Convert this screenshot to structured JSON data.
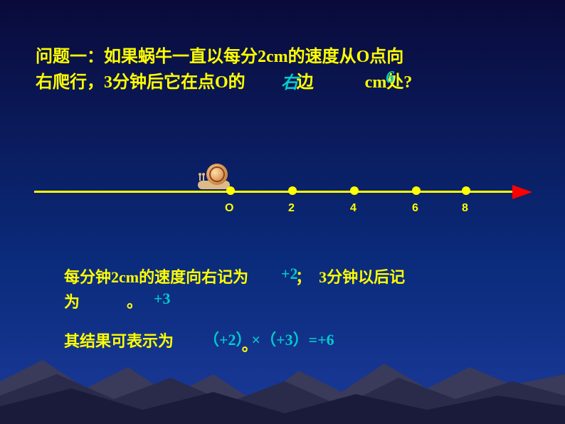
{
  "question": {
    "line1": "问题一：如果蜗牛一直以每分2cm的速度从O点向",
    "line2": "右爬行，3分钟后它在点O的　　　边　　　cm处?",
    "answer_direction": "右",
    "answer_distance": "6"
  },
  "number_line": {
    "origin_label": "O",
    "ticks": [
      {
        "pos": 270,
        "label": "O",
        "label_pos": 268
      },
      {
        "pos": 357,
        "label": "2",
        "label_pos": 357
      },
      {
        "pos": 444,
        "label": "4",
        "label_pos": 444
      },
      {
        "pos": 531,
        "label": "6",
        "label_pos": 531
      },
      {
        "pos": 601,
        "label": "8",
        "label_pos": 601
      }
    ],
    "colors": {
      "line": "#ffff00",
      "arrow": "#ff0000"
    }
  },
  "explanation": {
    "line1": "每分钟2cm的速度向右记为　　　；　3分钟以后记",
    "line2": "为　　　。",
    "value_speed": "+2",
    "value_time": "+3",
    "result_label": "其结果可表示为",
    "result_expression": "（+2）×（+3）=+6",
    "period": "。"
  },
  "colors": {
    "text_main": "#ffff00",
    "text_highlight": "#00cccc",
    "background_top": "#0a0a3a",
    "background_bottom": "#1a3a9a",
    "mountain_dark": "#1a1a2a",
    "mountain_mid": "#2a2a3a",
    "mountain_light": "#3a3a4a"
  }
}
